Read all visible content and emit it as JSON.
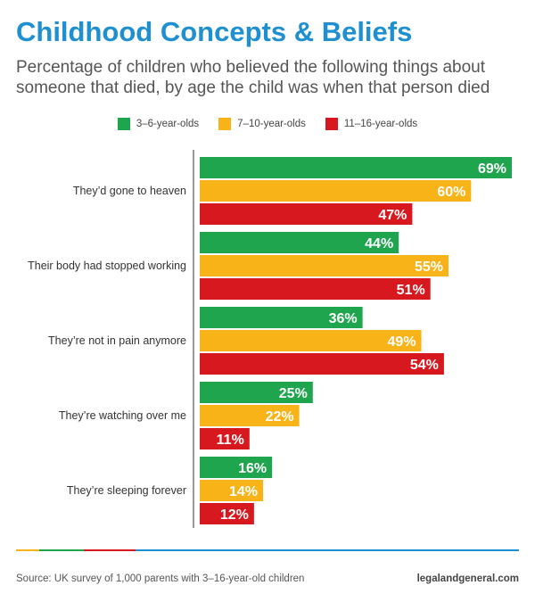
{
  "header": {
    "title": "Childhood Concepts & Beliefs",
    "subtitle": "Percentage of children who believed the following things about someone that died, by age the child was when that person died"
  },
  "legend": [
    {
      "label": "3–6-year-olds",
      "color": "#1fa54e"
    },
    {
      "label": "7–10-year-olds",
      "color": "#f7b318"
    },
    {
      "label": "11–16-year-olds",
      "color": "#d7181f"
    }
  ],
  "chart_data": {
    "type": "bar",
    "orientation": "horizontal",
    "categories": [
      "They’d gone to heaven",
      "Their body had stopped working",
      "They’re not in pain anymore",
      "They’re watching over me",
      "They’re sleeping forever"
    ],
    "series": [
      {
        "name": "3–6-year-olds",
        "values": [
          69,
          44,
          36,
          25,
          16
        ],
        "color": "#1fa54e"
      },
      {
        "name": "7–10-year-olds",
        "values": [
          60,
          55,
          49,
          22,
          14
        ],
        "color": "#f7b318"
      },
      {
        "name": "11–16-year-olds",
        "values": [
          47,
          51,
          54,
          11,
          12
        ],
        "color": "#d7181f"
      }
    ],
    "value_suffix": "%",
    "xlim": [
      0,
      69
    ],
    "grid": false,
    "legend_position": "top"
  },
  "footer": {
    "source": "Source: UK survey of 1,000 parents with 3–16-year-old children",
    "site": "legalandgeneral.com",
    "accent_colors": [
      "#f7b318",
      "#1fa54e",
      "#d7181f",
      "#1e8fd0"
    ]
  }
}
